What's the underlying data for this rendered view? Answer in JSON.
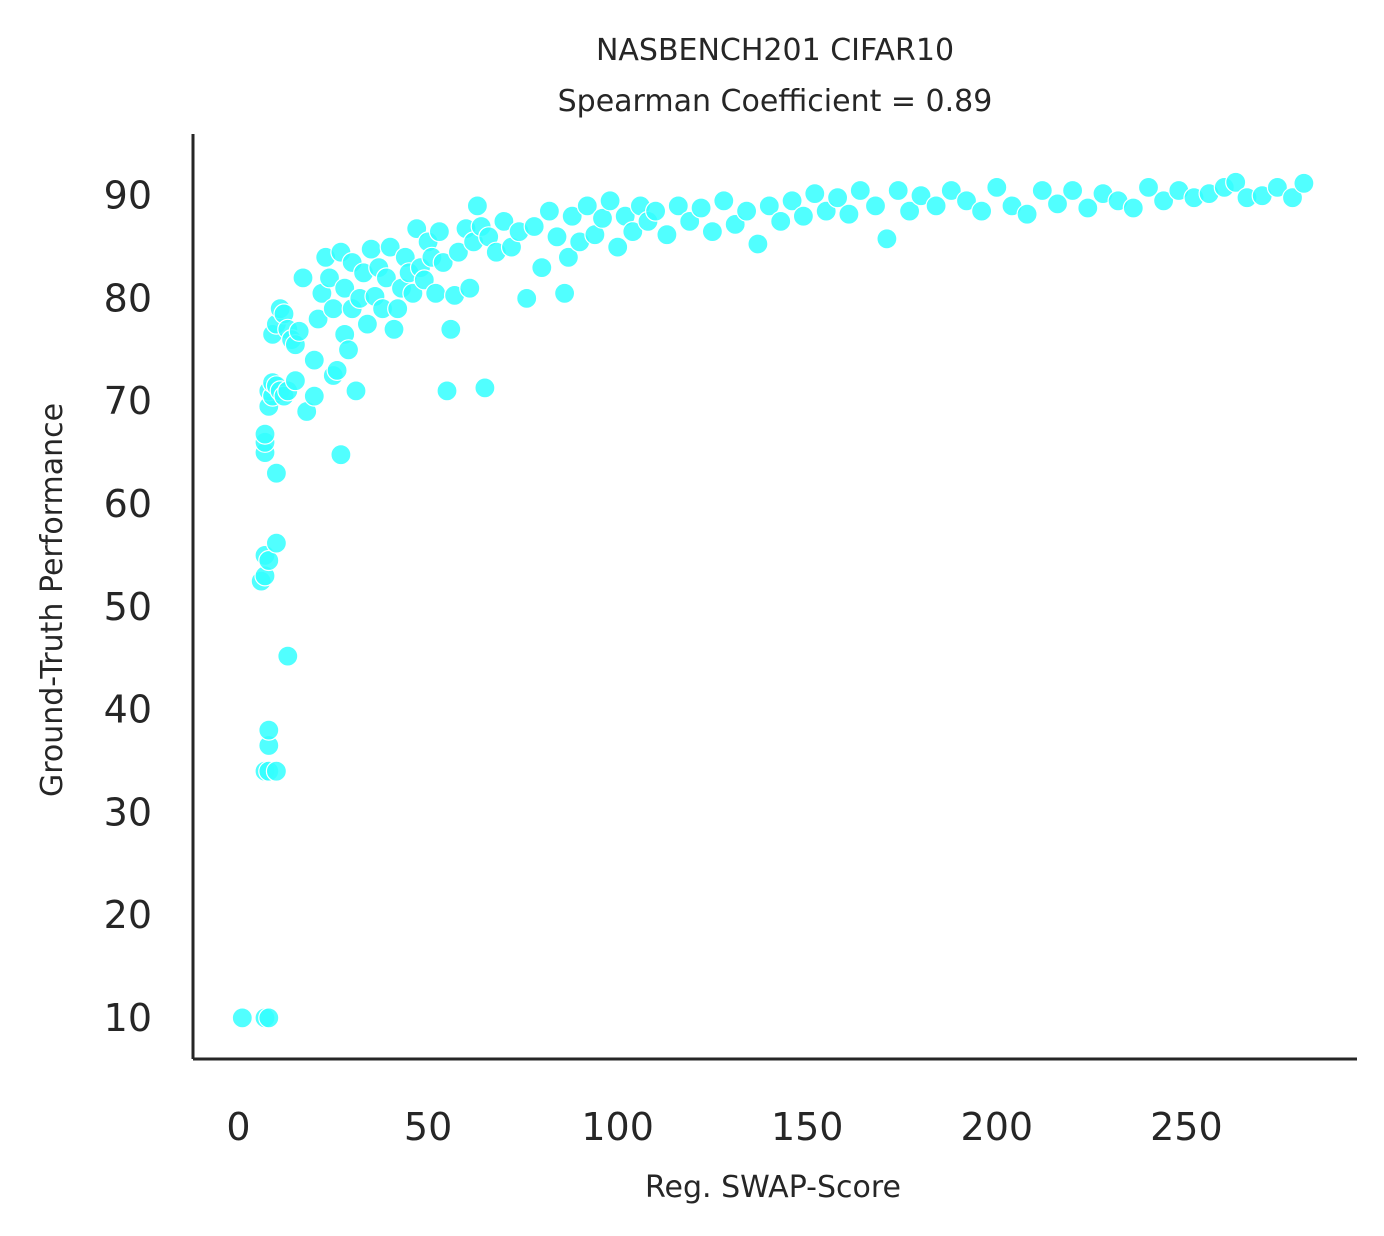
{
  "chart_data": {
    "type": "scatter",
    "title": "NASBENCH201 CIFAR10",
    "subtitle": "Spearman Coefficient = 0.89",
    "xlabel": "Reg. SWAP-Score",
    "ylabel": "Ground-Truth Performance",
    "xlim": [
      -12,
      295
    ],
    "ylim": [
      6,
      96
    ],
    "xticks": [
      0,
      50,
      100,
      150,
      200,
      250
    ],
    "yticks": [
      10,
      20,
      30,
      40,
      50,
      60,
      70,
      80,
      90
    ],
    "grid": false,
    "marker_color": "#33ffff",
    "marker_edge_color": "#ffffff",
    "series": [
      {
        "points": [
          [
            1,
            10
          ],
          [
            7,
            10
          ],
          [
            8,
            10
          ],
          [
            7,
            34
          ],
          [
            8,
            34
          ],
          [
            10,
            34
          ],
          [
            8,
            36.5
          ],
          [
            8,
            38
          ],
          [
            13,
            45.2
          ],
          [
            6,
            52.5
          ],
          [
            7,
            53
          ],
          [
            7,
            55
          ],
          [
            8,
            54.5
          ],
          [
            10,
            56.2
          ],
          [
            10,
            63
          ],
          [
            7,
            65
          ],
          [
            7,
            66
          ],
          [
            7,
            66.8
          ],
          [
            8,
            69.5
          ],
          [
            8,
            71
          ],
          [
            9,
            70.5
          ],
          [
            9,
            71.8
          ],
          [
            10,
            71.5
          ],
          [
            11,
            71
          ],
          [
            12,
            70.5
          ],
          [
            13,
            71
          ],
          [
            15,
            72
          ],
          [
            9,
            76.5
          ],
          [
            10,
            77.5
          ],
          [
            11,
            79
          ],
          [
            12,
            78.5
          ],
          [
            13,
            77
          ],
          [
            14,
            76
          ],
          [
            15,
            75.5
          ],
          [
            16,
            76.8
          ],
          [
            17,
            82
          ],
          [
            18,
            69
          ],
          [
            20,
            70.5
          ],
          [
            20,
            74
          ],
          [
            21,
            78
          ],
          [
            22,
            80.5
          ],
          [
            23,
            84
          ],
          [
            24,
            82
          ],
          [
            25,
            79
          ],
          [
            25,
            72.5
          ],
          [
            26,
            73
          ],
          [
            27,
            64.8
          ],
          [
            27,
            84.5
          ],
          [
            28,
            81
          ],
          [
            28,
            76.5
          ],
          [
            29,
            75
          ],
          [
            30,
            79
          ],
          [
            30,
            83.5
          ],
          [
            31,
            71
          ],
          [
            32,
            80
          ],
          [
            33,
            82.5
          ],
          [
            34,
            77.5
          ],
          [
            35,
            84.8
          ],
          [
            36,
            80.2
          ],
          [
            37,
            83
          ],
          [
            38,
            79
          ],
          [
            39,
            82
          ],
          [
            40,
            85
          ],
          [
            41,
            77
          ],
          [
            42,
            79
          ],
          [
            43,
            81
          ],
          [
            44,
            84
          ],
          [
            45,
            82.5
          ],
          [
            46,
            80.5
          ],
          [
            47,
            86.8
          ],
          [
            48,
            83
          ],
          [
            49,
            81.8
          ],
          [
            50,
            85.5
          ],
          [
            51,
            84
          ],
          [
            52,
            80.5
          ],
          [
            53,
            86.5
          ],
          [
            54,
            83.5
          ],
          [
            55,
            71
          ],
          [
            56,
            77
          ],
          [
            57,
            80.3
          ],
          [
            58,
            84.5
          ],
          [
            60,
            86.8
          ],
          [
            61,
            81
          ],
          [
            62,
            85.5
          ],
          [
            63,
            89
          ],
          [
            64,
            87
          ],
          [
            65,
            71.3
          ],
          [
            66,
            86
          ],
          [
            68,
            84.5
          ],
          [
            70,
            87.5
          ],
          [
            72,
            85
          ],
          [
            74,
            86.5
          ],
          [
            76,
            80
          ],
          [
            78,
            87
          ],
          [
            80,
            83
          ],
          [
            82,
            88.5
          ],
          [
            84,
            86
          ],
          [
            86,
            80.5
          ],
          [
            87,
            84
          ],
          [
            88,
            88
          ],
          [
            90,
            85.5
          ],
          [
            92,
            89
          ],
          [
            94,
            86.2
          ],
          [
            96,
            87.8
          ],
          [
            98,
            89.5
          ],
          [
            100,
            85
          ],
          [
            102,
            88
          ],
          [
            104,
            86.5
          ],
          [
            106,
            89
          ],
          [
            108,
            87.5
          ],
          [
            110,
            88.5
          ],
          [
            113,
            86.2
          ],
          [
            116,
            89
          ],
          [
            119,
            87.5
          ],
          [
            122,
            88.8
          ],
          [
            125,
            86.5
          ],
          [
            128,
            89.5
          ],
          [
            131,
            87.2
          ],
          [
            134,
            88.5
          ],
          [
            137,
            85.3
          ],
          [
            140,
            89
          ],
          [
            143,
            87.5
          ],
          [
            146,
            89.5
          ],
          [
            149,
            88
          ],
          [
            152,
            90.2
          ],
          [
            155,
            88.5
          ],
          [
            158,
            89.8
          ],
          [
            161,
            88.2
          ],
          [
            164,
            90.5
          ],
          [
            168,
            89
          ],
          [
            171,
            85.8
          ],
          [
            174,
            90.5
          ],
          [
            177,
            88.5
          ],
          [
            180,
            90
          ],
          [
            184,
            89
          ],
          [
            188,
            90.5
          ],
          [
            192,
            89.5
          ],
          [
            196,
            88.5
          ],
          [
            200,
            90.8
          ],
          [
            204,
            89
          ],
          [
            208,
            88.2
          ],
          [
            212,
            90.5
          ],
          [
            216,
            89.2
          ],
          [
            220,
            90.5
          ],
          [
            224,
            88.8
          ],
          [
            228,
            90.2
          ],
          [
            232,
            89.5
          ],
          [
            236,
            88.8
          ],
          [
            240,
            90.8
          ],
          [
            244,
            89.5
          ],
          [
            248,
            90.5
          ],
          [
            252,
            89.8
          ],
          [
            256,
            90.2
          ],
          [
            260,
            90.8
          ],
          [
            263,
            91.3
          ],
          [
            266,
            89.8
          ],
          [
            270,
            90
          ],
          [
            274,
            90.8
          ],
          [
            278,
            89.8
          ],
          [
            281,
            91.2
          ]
        ]
      }
    ]
  }
}
